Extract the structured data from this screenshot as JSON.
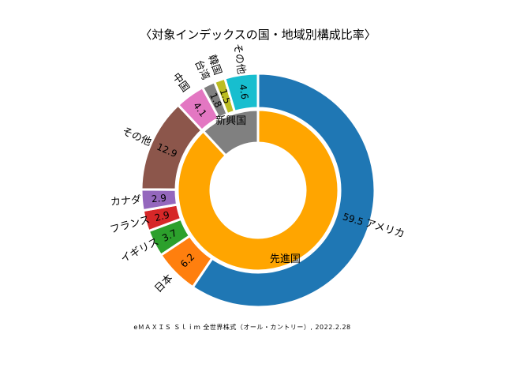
{
  "chart_data": {
    "type": "pie",
    "title": "〈対象インデックスの国・地域別構成比率〉",
    "caption": "eＭＡＸＩＳ Ｓｌｉｍ 全世界株式（オール・カントリー）, 2022.2.28",
    "outer": {
      "categories": [
        "アメリカ",
        "日本",
        "イギリス",
        "フランス",
        "カナダ",
        "その他",
        "中国",
        "台湾",
        "韓国",
        "その他"
      ],
      "values": [
        59.5,
        6.2,
        3.7,
        2.9,
        2.9,
        12.9,
        4.1,
        1.8,
        1.5,
        4.6
      ],
      "value_labels": [
        "59.5",
        "6.2",
        "3.7",
        "2.9",
        "2.9",
        "12.9",
        "4.1",
        "1.8",
        "1.5",
        "4.6"
      ],
      "colors": [
        "#1f77b4",
        "#ff7f0e",
        "#2ca02c",
        "#d62728",
        "#9467bd",
        "#8c564b",
        "#e377c2",
        "#7f7f7f",
        "#bcbd22",
        "#17becf"
      ]
    },
    "inner": {
      "categories": [
        "先進国",
        "新興国"
      ],
      "values": [
        88.1,
        11.9
      ],
      "colors": [
        "#ffa500",
        "#808080"
      ]
    }
  }
}
